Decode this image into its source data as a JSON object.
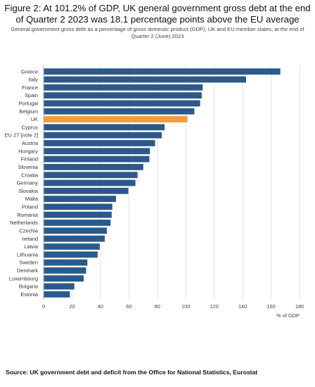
{
  "title": "Figure 2: At 101.2% of GDP, UK general government gross debt at the end of Quarter 2 2023 was 18.1 percentage points above the EU average",
  "subtitle": "General government gross debt as a percentage of gross domestic product (GDP), UK and EU member states, at the end of Quarter 2 (June) 2023",
  "source": "Source: UK government debt and deficit from the Office for National Statistics, Eurostat",
  "colors": {
    "bar": "#2b5a8a",
    "highlight": "#f39c35"
  },
  "chart_data": {
    "type": "bar",
    "orientation": "horizontal",
    "categories": [
      "Greece",
      "Italy",
      "France",
      "Spain",
      "Portugal",
      "Belgium",
      "UK",
      "Cyprus",
      "EU 27 [note 2]",
      "Austria",
      "Hungary",
      "Finland",
      "Slovenia",
      "Croatia",
      "Germany",
      "Slovakia",
      "Malta",
      "Poland",
      "Romania",
      "Netherlands",
      "Czechia",
      "Ireland",
      "Latvia",
      "Lithuania",
      "Sweden",
      "Denmark",
      "Luxembourg",
      "Bulgaria",
      "Estonia"
    ],
    "values": [
      166.5,
      142.4,
      111.9,
      111.2,
      110.1,
      106.0,
      101.2,
      85.1,
      83.1,
      78.4,
      74.8,
      74.4,
      70.1,
      66.1,
      64.6,
      59.6,
      50.9,
      48.3,
      47.9,
      47.1,
      44.5,
      43.0,
      39.5,
      38.0,
      30.8,
      29.9,
      28.2,
      21.6,
      18.5
    ],
    "highlight": "UK",
    "xlabel": "% of GDP",
    "xlim": [
      0,
      180
    ],
    "xticks": [
      0,
      20,
      40,
      60,
      80,
      100,
      120,
      140,
      160,
      180
    ],
    "grid": "vertical"
  }
}
